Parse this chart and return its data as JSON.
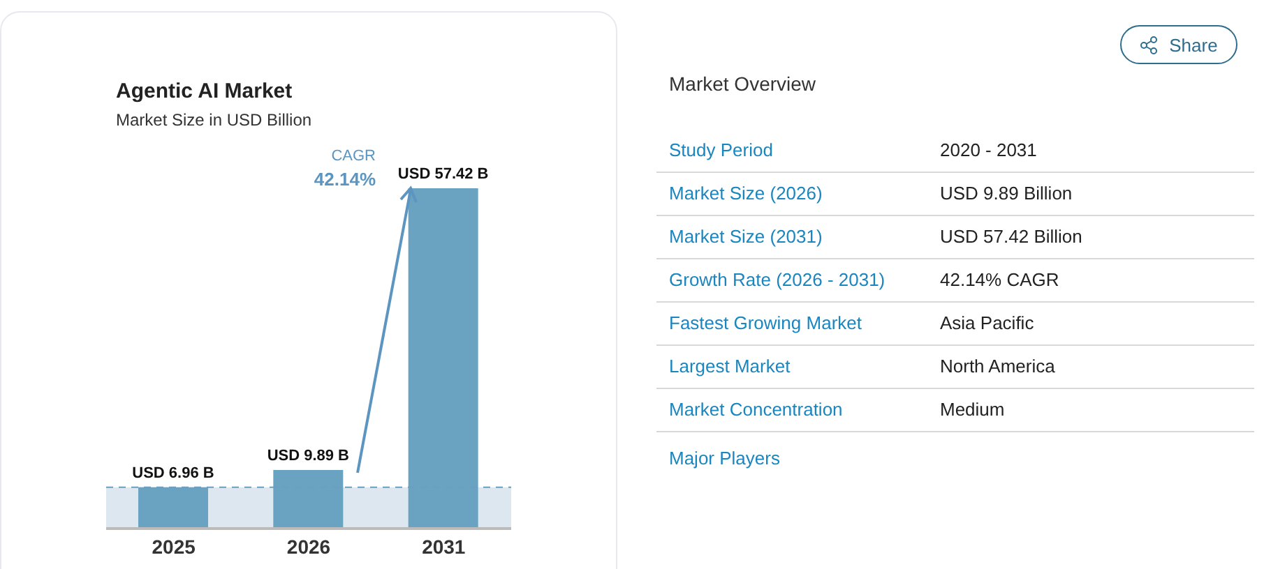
{
  "chart_data": [
    {
      "type": "bar",
      "title": "Agentic AI Market",
      "subtitle": "Market Size in USD Billion",
      "categories": [
        "2025",
        "2026",
        "2031"
      ],
      "values": [
        6.96,
        9.89,
        57.42
      ],
      "color": "#6aa3c2",
      "value_labels": [
        "USD 6.96 B",
        "USD 9.89 B",
        "USD 57.42 B"
      ],
      "annotations": [
        "CAGR",
        "42.14%"
      ],
      "bands": [
        {
          "axis": "y",
          "from": 0,
          "to": 6.96,
          "color": "#dde7ef"
        }
      ],
      "ref_lines": [
        {
          "axis": "y",
          "value": 6.96,
          "color": "#6a9fc0",
          "line_style": "dashed"
        }
      ]
    },
    {
      "type": "other",
      "title": "Market Overview",
      "annotations": [
        "Study Period",
        "2020 - 2031",
        "Market Size (2026)",
        "USD 9.89 Billion",
        "Market Size (2031)",
        "USD 57.42 Billion",
        "Growth Rate (2026 - 2031)",
        "42.14% CAGR",
        "Fastest Growing Market",
        "Asia Pacific",
        "Largest Market",
        "North America",
        "Market Concentration",
        "Medium",
        "Major Players",
        "Share"
      ]
    }
  ]
}
